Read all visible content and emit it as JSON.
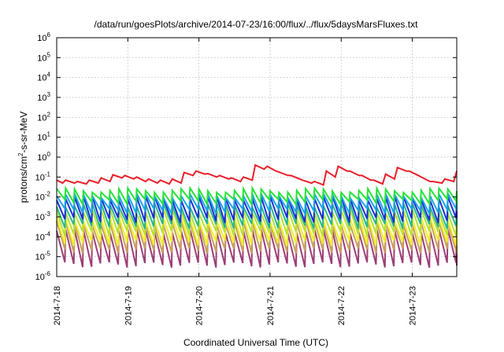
{
  "chart_data": {
    "type": "line",
    "title": "/data/run/goesPlots/archive/2014-07-23/16:00/flux/../flux/5daysMarsFluxes.txt",
    "xlabel": "Coordinated Universal Time (UTC)",
    "ylabel": {
      "base": "protons/cm",
      "sup": "2",
      "rest": "-s-sr-MeV"
    },
    "yscale": "log",
    "ylim": [
      1e-06,
      1000000.0
    ],
    "xlim": [
      "2014-07-18 00:00",
      "2014-07-23 15:00"
    ],
    "grid": true,
    "x_ticks": [
      "2014-7-18",
      "2014-7-19",
      "2014-7-20",
      "2014-7-21",
      "2014-7-22",
      "2014-7-23"
    ],
    "y_ticks": [
      {
        "value": 1e-06,
        "base": "10",
        "exp": "-6"
      },
      {
        "value": 1e-05,
        "base": "10",
        "exp": "-5"
      },
      {
        "value": 0.0001,
        "base": "10",
        "exp": "-4"
      },
      {
        "value": 0.001,
        "base": "10",
        "exp": "-3"
      },
      {
        "value": 0.01,
        "base": "10",
        "exp": "-2"
      },
      {
        "value": 0.1,
        "base": "10",
        "exp": "-1"
      },
      {
        "value": 1.0,
        "base": "10",
        "exp": "0"
      },
      {
        "value": 10.0,
        "base": "10",
        "exp": "1"
      },
      {
        "value": 100.0,
        "base": "10",
        "exp": "2"
      },
      {
        "value": 1000.0,
        "base": "10",
        "exp": "3"
      },
      {
        "value": 10000.0,
        "base": "10",
        "exp": "4"
      },
      {
        "value": 100000.0,
        "base": "10",
        "exp": "5"
      },
      {
        "value": 1000000.0,
        "base": "10",
        "exp": "6"
      }
    ],
    "series": [
      {
        "color": "#e8202a",
        "x": [
          "2014-07-18 00:00",
          "2014-07-18 02:00",
          "2014-07-18 03:00",
          "2014-07-18 06:00",
          "2014-07-18 07:00",
          "2014-07-18 10:00",
          "2014-07-18 11:00",
          "2014-07-18 14:00",
          "2014-07-18 15:00",
          "2014-07-18 18:00",
          "2014-07-18 19:00",
          "2014-07-18 22:00",
          "2014-07-18 23:00",
          "2014-07-19 02:00",
          "2014-07-19 03:00",
          "2014-07-19 06:00",
          "2014-07-19 07:00",
          "2014-07-19 10:00",
          "2014-07-19 11:00",
          "2014-07-19 14:00",
          "2014-07-19 15:00",
          "2014-07-19 18:00",
          "2014-07-19 19:00",
          "2014-07-19 22:00",
          "2014-07-19 23:00",
          "2014-07-20 02:00",
          "2014-07-20 03:00",
          "2014-07-20 06:00",
          "2014-07-20 07:00",
          "2014-07-20 10:00",
          "2014-07-20 11:00",
          "2014-07-20 14:00",
          "2014-07-20 15:00",
          "2014-07-20 18:00",
          "2014-07-20 19:00",
          "2014-07-20 22:00",
          "2014-07-20 23:00",
          "2014-07-21 02:00",
          "2014-07-21 03:00",
          "2014-07-21 06:00",
          "2014-07-21 07:00",
          "2014-07-21 10:00",
          "2014-07-21 11:00",
          "2014-07-21 14:00",
          "2014-07-21 15:00",
          "2014-07-21 18:00",
          "2014-07-21 19:00",
          "2014-07-21 22:00",
          "2014-07-21 23:00",
          "2014-07-22 02:00",
          "2014-07-22 03:00",
          "2014-07-22 06:00",
          "2014-07-22 07:00",
          "2014-07-22 10:00",
          "2014-07-22 11:00",
          "2014-07-22 14:00",
          "2014-07-22 15:00",
          "2014-07-22 18:00",
          "2014-07-22 19:00",
          "2014-07-22 22:00",
          "2014-07-22 23:00",
          "2014-07-23 02:00",
          "2014-07-23 03:00",
          "2014-07-23 06:00",
          "2014-07-23 07:00",
          "2014-07-23 10:00",
          "2014-07-23 11:00",
          "2014-07-23 14:00",
          "2014-07-23 15:00"
        ],
        "values": [
          0.07,
          0.05,
          0.07,
          0.05,
          0.06,
          0.045,
          0.07,
          0.05,
          0.09,
          0.06,
          0.13,
          0.09,
          0.12,
          0.08,
          0.1,
          0.06,
          0.08,
          0.05,
          0.07,
          0.045,
          0.08,
          0.05,
          0.17,
          0.12,
          0.2,
          0.14,
          0.15,
          0.1,
          0.12,
          0.08,
          0.09,
          0.06,
          0.1,
          0.07,
          0.4,
          0.25,
          0.35,
          0.2,
          0.18,
          0.12,
          0.12,
          0.08,
          0.07,
          0.05,
          0.06,
          0.04,
          0.2,
          0.1,
          0.35,
          0.2,
          0.2,
          0.12,
          0.12,
          0.07,
          0.07,
          0.045,
          0.14,
          0.08,
          0.3,
          0.2,
          0.2,
          0.12,
          0.1,
          0.06,
          0.06,
          0.05,
          0.08,
          0.06,
          0.2
        ]
      },
      {
        "color": "#26e33a",
        "base": 0.012,
        "peak": 0.022,
        "trough": 0.006,
        "period_hours": 3,
        "trend": "flat-rising"
      },
      {
        "color": "#1ba3e8",
        "base": 0.006,
        "peak": 0.012,
        "trough": 0.002,
        "period_hours": 3,
        "trend": "flat"
      },
      {
        "color": "#1a2fd6",
        "base": 0.002,
        "peak": 0.009,
        "trough": 0.0007,
        "period_hours": 3,
        "trend": "flat"
      },
      {
        "color": "#27b88a",
        "base": 0.0012,
        "peak": 0.004,
        "trough": 0.00035,
        "period_hours": 3,
        "trend": "flat"
      },
      {
        "color": "#b8e030",
        "base": 0.0005,
        "peak": 0.002,
        "trough": 0.00015,
        "period_hours": 3,
        "trend": "flat"
      },
      {
        "color": "#f0ef2a",
        "base": 0.0002,
        "peak": 0.0008,
        "trough": 5e-05,
        "period_hours": 3,
        "trend": "flat"
      },
      {
        "color": "#c8a060",
        "base": 0.0001,
        "peak": 0.0005,
        "trough": 2e-05,
        "period_hours": 3,
        "trend": "flat"
      },
      {
        "color": "#9c3e76",
        "base": 3e-05,
        "peak": 0.0002,
        "trough": 4e-06,
        "period_hours": 3,
        "trend": "flat"
      }
    ]
  }
}
